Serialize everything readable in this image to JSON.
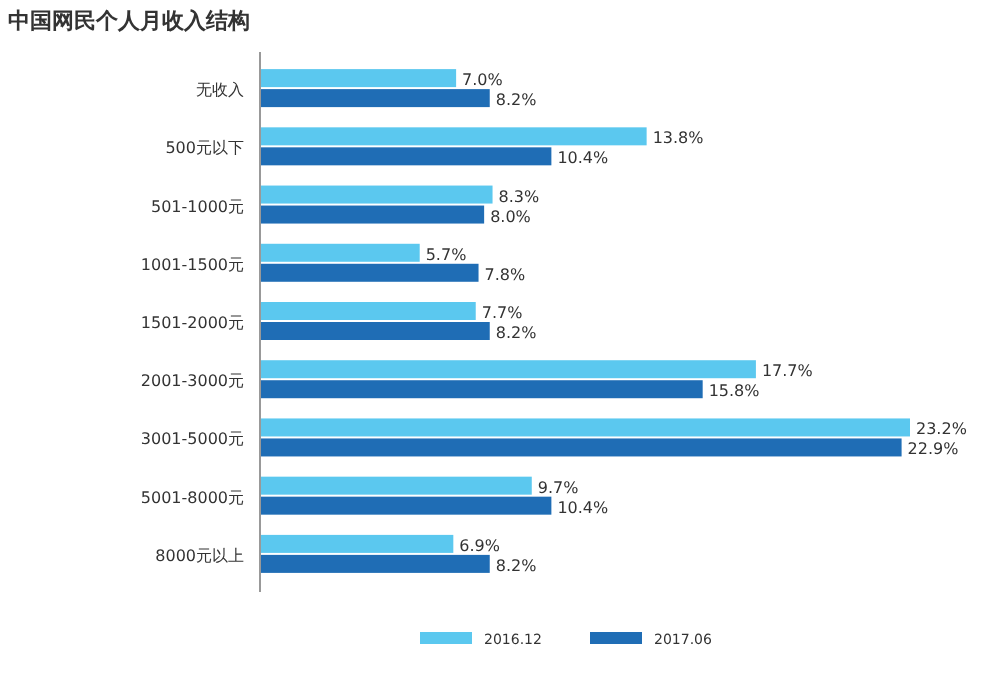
{
  "chart_data": {
    "type": "bar",
    "orientation": "horizontal",
    "title": "中国网民个人月收入结构",
    "categories": [
      "无收入",
      "500元以下",
      "501-1000元",
      "1001-1500元",
      "1501-2000元",
      "2001-3000元",
      "3001-5000元",
      "5001-8000元",
      "8000元以上"
    ],
    "series": [
      {
        "name": "2016.12",
        "color": "#5bc8ef",
        "values": [
          7.0,
          13.8,
          8.3,
          5.7,
          7.7,
          17.7,
          23.2,
          9.7,
          6.9
        ],
        "value_labels": [
          "7.0%",
          "13.8%",
          "8.3%",
          "5.7%",
          "7.7%",
          "17.7%",
          "23.2%",
          "9.7%",
          "6.9%"
        ]
      },
      {
        "name": "2017.06",
        "color": "#1f6db5",
        "values": [
          8.2,
          10.4,
          8.0,
          7.8,
          8.2,
          15.8,
          22.9,
          10.4,
          8.2
        ],
        "value_labels": [
          "8.2%",
          "10.4%",
          "8.0%",
          "7.8%",
          "8.2%",
          "15.8%",
          "22.9%",
          "10.4%",
          "8.2%"
        ]
      }
    ],
    "legend": "bottom",
    "grid": false
  }
}
